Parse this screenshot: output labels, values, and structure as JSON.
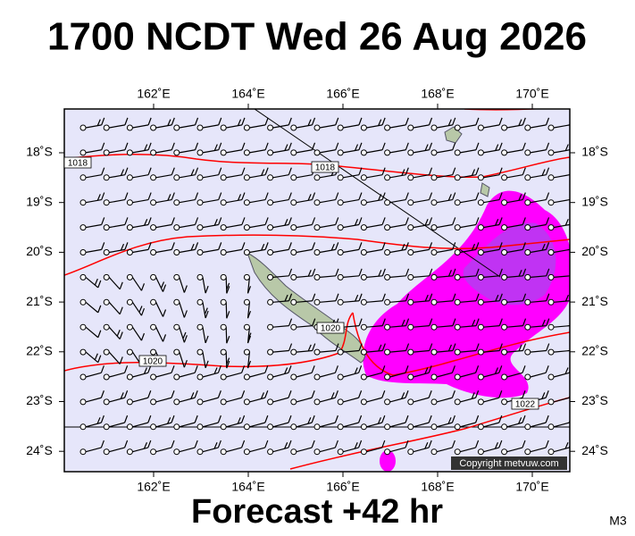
{
  "header": {
    "title": "1700 NCDT Wed 26 Aug 2026"
  },
  "map": {
    "lon_labels": [
      "162˚E",
      "164˚E",
      "166˚E",
      "168˚E",
      "170˚E"
    ],
    "lat_labels": [
      "18˚S",
      "19˚S",
      "20˚S",
      "21˚S",
      "22˚S",
      "23˚S",
      "24˚S"
    ],
    "isobar_labels": [
      "1018",
      "1018",
      "1020",
      "1020",
      "1022"
    ],
    "copyright": "Copyright metvuw.com"
  },
  "footer": {
    "forecast": "Forecast +42 hr",
    "model": "M3"
  }
}
